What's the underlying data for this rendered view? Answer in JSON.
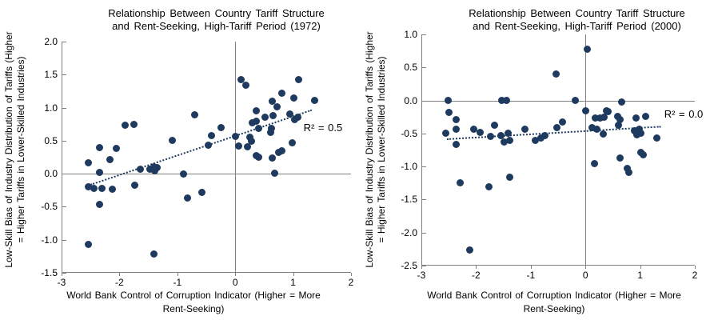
{
  "colors": {
    "point": "#1f3a5f",
    "trend": "#1f3a5f",
    "axis": "#808080",
    "text": "#000000",
    "background": "#ffffff"
  },
  "chart_data": [
    {
      "type": "scatter",
      "title_lines": [
        "Relationship Between Country Tariff Structure",
        "and Rent-Seeking, High-Tariff Period (1972)"
      ],
      "title": "Relationship Between Country Tariff Structure and Rent-Seeking, High-Tariff Period (1972)",
      "ylabel_lines": [
        "Low-Skill Bias of Industry Distribution of Tariffs (Higher",
        "= Higher Tariffs in Lower-Skilled Industries)"
      ],
      "ylabel": "Low-Skill Bias of Industry Distribution of Tariffs (Higher = Higher Tariffs in Lower-Skilled Industries)",
      "xlabel_lines": [
        "World Bank Control of Corruption Indicator (Higher = More",
        "Rent-Seeking)"
      ],
      "xlabel": "World Bank Control of Corruption Indicator (Higher = More Rent-Seeking)",
      "annotation": {
        "text": "R² = 0.5",
        "x": 1.18,
        "y": 0.69
      },
      "xlim": [
        -3,
        2
      ],
      "ylim": [
        -1.5,
        2.0
      ],
      "x_tick_values": [
        -3,
        -2,
        -1,
        0,
        1,
        2
      ],
      "x_tick_labels": [
        "-3",
        "-2",
        "-1",
        "0",
        "1",
        "2"
      ],
      "y_tick_values": [
        2.0,
        1.5,
        1.0,
        0.5,
        0.0,
        -0.5,
        -1.0,
        -1.5
      ],
      "y_tick_labels": [
        "2.0",
        "1.5",
        "1.0",
        "0.5",
        "0.0",
        "-0.5",
        "-1.0",
        "-1.5"
      ],
      "zero_lines": true,
      "grid": false,
      "trendline": {
        "style": "dotted",
        "x1": -2.5,
        "y1": -0.15,
        "x2": 1.32,
        "y2": 0.98
      },
      "points": [
        [
          0.1,
          1.42
        ],
        [
          0.19,
          1.34
        ],
        [
          1.09,
          1.43
        ],
        [
          0.81,
          1.22
        ],
        [
          1.01,
          1.15
        ],
        [
          0.64,
          1.1
        ],
        [
          0.72,
          1.01
        ],
        [
          1.37,
          1.11
        ],
        [
          0.94,
          0.91
        ],
        [
          1.02,
          0.82
        ],
        [
          1.08,
          0.85
        ],
        [
          0.36,
          0.95
        ],
        [
          0.52,
          0.86
        ],
        [
          0.65,
          0.88
        ],
        [
          0.29,
          0.77
        ],
        [
          0.36,
          0.79
        ],
        [
          0.41,
          0.68
        ],
        [
          0.62,
          0.69
        ],
        [
          0.61,
          0.63
        ],
        [
          0.25,
          0.55
        ],
        [
          0.01,
          0.57
        ],
        [
          0.28,
          0.49
        ],
        [
          0.21,
          0.41
        ],
        [
          0.06,
          0.42
        ],
        [
          0.98,
          0.47
        ],
        [
          0.36,
          0.27
        ],
        [
          0.41,
          0.25
        ],
        [
          0.64,
          0.24
        ],
        [
          0.81,
          0.35
        ],
        [
          0.75,
          0.32
        ],
        [
          0.68,
          0.01
        ],
        [
          -0.25,
          0.7
        ],
        [
          -0.41,
          0.58
        ],
        [
          -0.46,
          0.43
        ],
        [
          -0.7,
          0.89
        ],
        [
          -1.09,
          0.5
        ],
        [
          -1.75,
          0.75
        ],
        [
          -1.9,
          0.73
        ],
        [
          -2.35,
          0.4
        ],
        [
          -2.06,
          0.38
        ],
        [
          -2.17,
          0.21
        ],
        [
          -2.54,
          0.17
        ],
        [
          -2.35,
          0.02
        ],
        [
          -1.41,
          0.11
        ],
        [
          -1.47,
          0.07
        ],
        [
          -1.64,
          0.07
        ],
        [
          -1.35,
          0.09
        ],
        [
          -1.39,
          0.04
        ],
        [
          -0.9,
          -0.01
        ],
        [
          -2.54,
          -0.2
        ],
        [
          -2.44,
          -0.22
        ],
        [
          -2.3,
          -0.22
        ],
        [
          -2.12,
          -0.23
        ],
        [
          -1.74,
          -0.17
        ],
        [
          -2.34,
          -0.47
        ],
        [
          -0.83,
          -0.37
        ],
        [
          -0.58,
          -0.28
        ],
        [
          -2.54,
          -1.07
        ],
        [
          -1.41,
          -1.21
        ]
      ]
    },
    {
      "type": "scatter",
      "title_lines": [
        "Relationship Between Country Tariff Structure",
        "and Rent-Seeking, High-Tariff Period (2000)"
      ],
      "title": "Relationship Between Country Tariff Structure and Rent-Seeking, High-Tariff Period (2000)",
      "ylabel_lines": [
        "Low-Skill Bias of Industry Distribution of Tariffs (Higher",
        "= Higher Tariffs in Lower-Skilled Industries)"
      ],
      "ylabel": "Low-Skill Bias of Industry Distribution of Tariffs (Higher = Higher Tariffs in Lower-Skilled Industries)",
      "xlabel_lines": [
        "World Bank Control of Corruption Indicator (Higher = More",
        "Rent-Seeking)"
      ],
      "xlabel": "World Bank Control of Corruption Indicator (Higher = More Rent-Seeking)",
      "annotation": {
        "text": "R² = 0.0",
        "x": 1.44,
        "y": -0.21
      },
      "xlim": [
        -3,
        2
      ],
      "ylim": [
        -2.5,
        1.0
      ],
      "x_tick_values": [
        -3,
        -2,
        -1,
        0,
        1,
        2
      ],
      "x_tick_labels": [
        "-3",
        "-2",
        "-1",
        "0",
        "1",
        "2"
      ],
      "y_tick_values": [
        1.0,
        0.5,
        0.0,
        -0.5,
        -1.0,
        -1.5,
        -2.0,
        -2.5
      ],
      "y_tick_labels": [
        "1.0",
        "0.5",
        "0.0",
        "-0.5",
        "-1.0",
        "-1.5",
        "-2.0",
        "-2.5"
      ],
      "zero_lines": true,
      "grid": false,
      "trendline": {
        "style": "dotted",
        "x1": -2.53,
        "y1": -0.57,
        "x2": 1.38,
        "y2": -0.38
      },
      "points": [
        [
          0.04,
          0.78
        ],
        [
          -0.53,
          0.4
        ],
        [
          -2.51,
          0.0
        ],
        [
          -1.53,
          0.0
        ],
        [
          -1.44,
          0.0
        ],
        [
          -0.19,
          0.0
        ],
        [
          0.66,
          -0.02
        ],
        [
          -2.49,
          -0.18
        ],
        [
          0.0,
          -0.16
        ],
        [
          0.41,
          -0.17
        ],
        [
          -2.36,
          -0.29
        ],
        [
          -2.36,
          -0.43
        ],
        [
          -2.55,
          -0.49
        ],
        [
          -2.37,
          -0.66
        ],
        [
          -2.04,
          -0.44
        ],
        [
          -1.92,
          -0.48
        ],
        [
          -1.66,
          -0.37
        ],
        [
          -1.74,
          -0.55
        ],
        [
          -1.54,
          -0.53
        ],
        [
          -1.42,
          -0.5
        ],
        [
          -1.48,
          -0.63
        ],
        [
          -1.38,
          -0.61
        ],
        [
          -1.11,
          -0.43
        ],
        [
          -0.92,
          -0.6
        ],
        [
          -0.82,
          -0.57
        ],
        [
          -0.74,
          -0.53
        ],
        [
          -0.52,
          -0.41
        ],
        [
          -0.42,
          -0.33
        ],
        [
          0.18,
          -0.26
        ],
        [
          0.27,
          -0.26
        ],
        [
          0.34,
          -0.25
        ],
        [
          0.39,
          -0.16
        ],
        [
          0.59,
          -0.24
        ],
        [
          0.64,
          -0.29
        ],
        [
          0.92,
          -0.26
        ],
        [
          1.1,
          -0.24
        ],
        [
          0.21,
          -0.43
        ],
        [
          0.33,
          -0.51
        ],
        [
          0.12,
          -0.41
        ],
        [
          0.6,
          -0.37
        ],
        [
          0.89,
          -0.46
        ],
        [
          0.99,
          -0.44
        ],
        [
          1.02,
          -0.5
        ],
        [
          0.94,
          -0.52
        ],
        [
          1.31,
          -0.57
        ],
        [
          1.01,
          -0.79
        ],
        [
          1.06,
          -0.82
        ],
        [
          0.63,
          -0.87
        ],
        [
          0.17,
          -0.95
        ],
        [
          0.76,
          -1.03
        ],
        [
          0.8,
          -1.09
        ],
        [
          -2.29,
          -1.25
        ],
        [
          -1.77,
          -1.31
        ],
        [
          -1.38,
          -1.16
        ],
        [
          -2.12,
          -2.26
        ]
      ]
    }
  ]
}
